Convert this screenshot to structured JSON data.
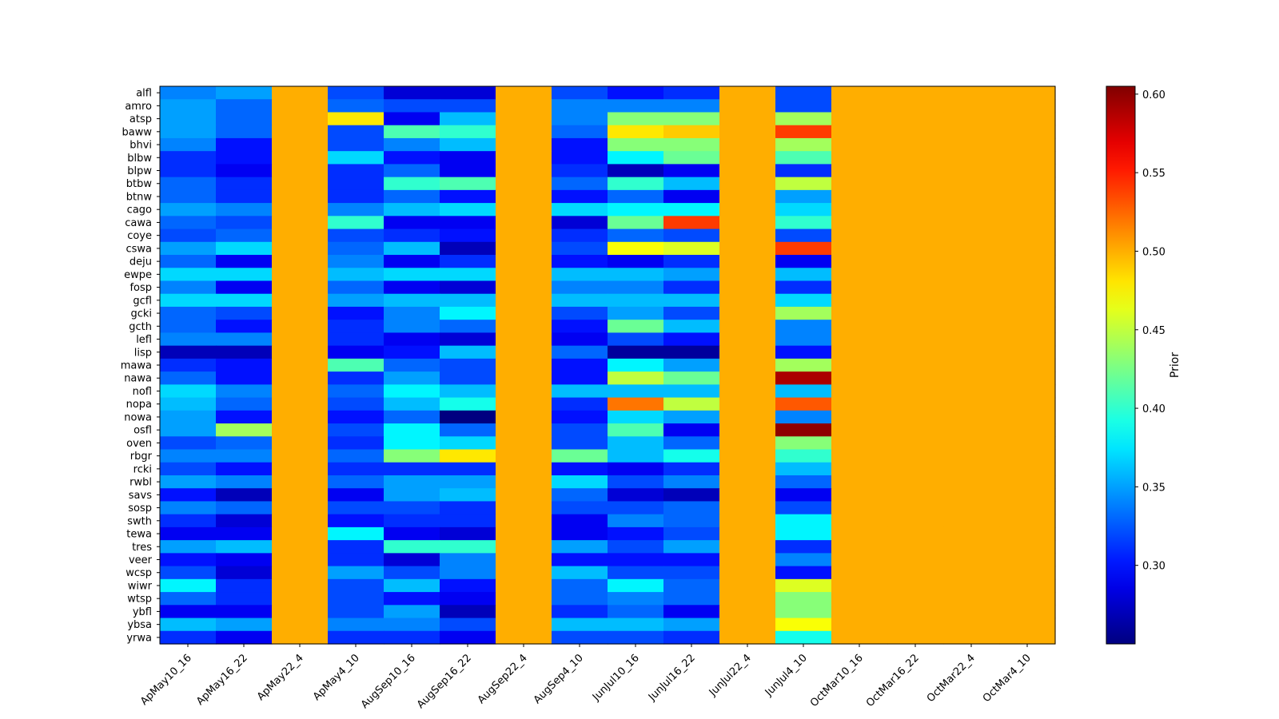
{
  "chart_data": {
    "type": "heatmap",
    "title": "",
    "xlabel": "",
    "ylabel": "",
    "x_categories": [
      "ApMay10_16",
      "ApMay16_22",
      "ApMay22_4",
      "ApMay4_10",
      "AugSep10_16",
      "AugSep16_22",
      "AugSep22_4",
      "AugSep4_10",
      "JunJul10_16",
      "JunJul16_22",
      "JunJul22_4",
      "JunJul4_10",
      "OctMar10_16",
      "OctMar16_22",
      "OctMar22_4",
      "OctMar4_10"
    ],
    "y_categories": [
      "alfl",
      "amro",
      "atsp",
      "baww",
      "bhvi",
      "blbw",
      "blpw",
      "btbw",
      "btnw",
      "cago",
      "cawa",
      "coye",
      "cswa",
      "deju",
      "ewpe",
      "fosp",
      "gcfl",
      "gcki",
      "gcth",
      "lefl",
      "lisp",
      "mawa",
      "nawa",
      "nofl",
      "nopa",
      "nowa",
      "osfl",
      "oven",
      "rbgr",
      "rcki",
      "rwbl",
      "savs",
      "sosp",
      "swth",
      "tewa",
      "tres",
      "veer",
      "wcsp",
      "wiwr",
      "wtsp",
      "ybfl",
      "ybsa",
      "yrwa"
    ],
    "values": [
      [
        0.34,
        0.35,
        0.5,
        0.32,
        0.28,
        0.28,
        0.5,
        0.32,
        0.3,
        0.31,
        0.5,
        0.32,
        0.5,
        0.5,
        0.5,
        0.5
      ],
      [
        0.35,
        0.33,
        0.5,
        0.33,
        0.32,
        0.32,
        0.5,
        0.34,
        0.34,
        0.34,
        0.5,
        0.32,
        0.5,
        0.5,
        0.5,
        0.5
      ],
      [
        0.35,
        0.33,
        0.5,
        0.48,
        0.29,
        0.36,
        0.5,
        0.34,
        0.43,
        0.43,
        0.5,
        0.44,
        0.5,
        0.5,
        0.5,
        0.5
      ],
      [
        0.35,
        0.33,
        0.5,
        0.32,
        0.41,
        0.4,
        0.5,
        0.33,
        0.48,
        0.49,
        0.5,
        0.54,
        0.5,
        0.5,
        0.5,
        0.5
      ],
      [
        0.34,
        0.3,
        0.5,
        0.32,
        0.34,
        0.36,
        0.5,
        0.3,
        0.43,
        0.43,
        0.5,
        0.44,
        0.5,
        0.5,
        0.5,
        0.5
      ],
      [
        0.31,
        0.3,
        0.5,
        0.37,
        0.3,
        0.29,
        0.5,
        0.3,
        0.38,
        0.42,
        0.5,
        0.41,
        0.5,
        0.5,
        0.5,
        0.5
      ],
      [
        0.31,
        0.29,
        0.5,
        0.31,
        0.33,
        0.29,
        0.5,
        0.31,
        0.27,
        0.29,
        0.5,
        0.31,
        0.5,
        0.5,
        0.5,
        0.5
      ],
      [
        0.33,
        0.31,
        0.5,
        0.31,
        0.4,
        0.41,
        0.5,
        0.33,
        0.4,
        0.36,
        0.5,
        0.45,
        0.5,
        0.5,
        0.5,
        0.5
      ],
      [
        0.33,
        0.31,
        0.5,
        0.31,
        0.33,
        0.3,
        0.5,
        0.3,
        0.33,
        0.29,
        0.5,
        0.35,
        0.5,
        0.5,
        0.5,
        0.5
      ],
      [
        0.35,
        0.34,
        0.5,
        0.34,
        0.36,
        0.37,
        0.5,
        0.37,
        0.38,
        0.38,
        0.5,
        0.37,
        0.5,
        0.5,
        0.5,
        0.5
      ],
      [
        0.33,
        0.32,
        0.5,
        0.4,
        0.29,
        0.29,
        0.5,
        0.28,
        0.42,
        0.54,
        0.5,
        0.4,
        0.5,
        0.5,
        0.5,
        0.5
      ],
      [
        0.32,
        0.33,
        0.5,
        0.32,
        0.31,
        0.3,
        0.5,
        0.31,
        0.33,
        0.32,
        0.5,
        0.32,
        0.5,
        0.5,
        0.5,
        0.5
      ],
      [
        0.35,
        0.37,
        0.5,
        0.33,
        0.36,
        0.27,
        0.5,
        0.32,
        0.47,
        0.46,
        0.5,
        0.54,
        0.5,
        0.5,
        0.5,
        0.5
      ],
      [
        0.33,
        0.29,
        0.5,
        0.34,
        0.29,
        0.31,
        0.5,
        0.3,
        0.29,
        0.31,
        0.5,
        0.29,
        0.5,
        0.5,
        0.5,
        0.5
      ],
      [
        0.37,
        0.37,
        0.5,
        0.36,
        0.37,
        0.37,
        0.5,
        0.36,
        0.36,
        0.35,
        0.5,
        0.36,
        0.5,
        0.5,
        0.5,
        0.5
      ],
      [
        0.34,
        0.29,
        0.5,
        0.33,
        0.29,
        0.28,
        0.5,
        0.34,
        0.34,
        0.31,
        0.5,
        0.31,
        0.5,
        0.5,
        0.5,
        0.5
      ],
      [
        0.37,
        0.37,
        0.5,
        0.35,
        0.36,
        0.36,
        0.5,
        0.36,
        0.36,
        0.36,
        0.5,
        0.37,
        0.5,
        0.5,
        0.5,
        0.5
      ],
      [
        0.33,
        0.32,
        0.5,
        0.3,
        0.34,
        0.38,
        0.5,
        0.32,
        0.35,
        0.32,
        0.5,
        0.44,
        0.5,
        0.5,
        0.5,
        0.5
      ],
      [
        0.33,
        0.3,
        0.5,
        0.31,
        0.34,
        0.33,
        0.5,
        0.3,
        0.42,
        0.36,
        0.5,
        0.34,
        0.5,
        0.5,
        0.5,
        0.5
      ],
      [
        0.34,
        0.34,
        0.5,
        0.31,
        0.29,
        0.28,
        0.5,
        0.29,
        0.32,
        0.3,
        0.5,
        0.34,
        0.5,
        0.5,
        0.5,
        0.5
      ],
      [
        0.27,
        0.27,
        0.5,
        0.29,
        0.3,
        0.36,
        0.5,
        0.33,
        0.26,
        0.26,
        0.5,
        0.3,
        0.5,
        0.5,
        0.5,
        0.5
      ],
      [
        0.31,
        0.3,
        0.5,
        0.41,
        0.33,
        0.32,
        0.5,
        0.3,
        0.38,
        0.35,
        0.5,
        0.44,
        0.5,
        0.5,
        0.5,
        0.5
      ],
      [
        0.33,
        0.3,
        0.5,
        0.31,
        0.35,
        0.32,
        0.5,
        0.3,
        0.45,
        0.42,
        0.5,
        0.59,
        0.5,
        0.5,
        0.5,
        0.5
      ],
      [
        0.37,
        0.34,
        0.5,
        0.33,
        0.38,
        0.36,
        0.5,
        0.36,
        0.36,
        0.36,
        0.5,
        0.36,
        0.5,
        0.5,
        0.5,
        0.5
      ],
      [
        0.36,
        0.33,
        0.5,
        0.32,
        0.36,
        0.39,
        0.5,
        0.31,
        0.52,
        0.45,
        0.5,
        0.53,
        0.5,
        0.5,
        0.5,
        0.5
      ],
      [
        0.35,
        0.3,
        0.5,
        0.3,
        0.33,
        0.25,
        0.5,
        0.3,
        0.37,
        0.35,
        0.5,
        0.34,
        0.5,
        0.5,
        0.5,
        0.5
      ],
      [
        0.35,
        0.44,
        0.5,
        0.32,
        0.38,
        0.33,
        0.5,
        0.32,
        0.41,
        0.29,
        0.5,
        0.6,
        0.5,
        0.5,
        0.5,
        0.5
      ],
      [
        0.32,
        0.33,
        0.5,
        0.31,
        0.38,
        0.37,
        0.5,
        0.32,
        0.36,
        0.33,
        0.5,
        0.43,
        0.5,
        0.5,
        0.5,
        0.5
      ],
      [
        0.34,
        0.34,
        0.5,
        0.33,
        0.43,
        0.48,
        0.5,
        0.42,
        0.36,
        0.39,
        0.5,
        0.4,
        0.5,
        0.5,
        0.5,
        0.5
      ],
      [
        0.32,
        0.3,
        0.5,
        0.31,
        0.31,
        0.31,
        0.5,
        0.3,
        0.29,
        0.31,
        0.5,
        0.36,
        0.5,
        0.5,
        0.5,
        0.5
      ],
      [
        0.35,
        0.34,
        0.5,
        0.33,
        0.35,
        0.35,
        0.5,
        0.37,
        0.32,
        0.34,
        0.5,
        0.33,
        0.5,
        0.5,
        0.5,
        0.5
      ],
      [
        0.3,
        0.27,
        0.5,
        0.29,
        0.35,
        0.36,
        0.5,
        0.33,
        0.28,
        0.27,
        0.5,
        0.29,
        0.5,
        0.5,
        0.5,
        0.5
      ],
      [
        0.34,
        0.33,
        0.5,
        0.32,
        0.32,
        0.31,
        0.5,
        0.32,
        0.32,
        0.33,
        0.5,
        0.32,
        0.5,
        0.5,
        0.5,
        0.5
      ],
      [
        0.31,
        0.28,
        0.5,
        0.3,
        0.31,
        0.31,
        0.5,
        0.29,
        0.34,
        0.33,
        0.5,
        0.38,
        0.5,
        0.5,
        0.5,
        0.5
      ],
      [
        0.29,
        0.29,
        0.5,
        0.38,
        0.29,
        0.28,
        0.5,
        0.29,
        0.3,
        0.32,
        0.5,
        0.38,
        0.5,
        0.5,
        0.5,
        0.5
      ],
      [
        0.35,
        0.36,
        0.5,
        0.31,
        0.4,
        0.4,
        0.5,
        0.35,
        0.32,
        0.35,
        0.5,
        0.31,
        0.5,
        0.5,
        0.5,
        0.5
      ],
      [
        0.3,
        0.29,
        0.5,
        0.31,
        0.28,
        0.34,
        0.5,
        0.3,
        0.3,
        0.3,
        0.5,
        0.34,
        0.5,
        0.5,
        0.5,
        0.5
      ],
      [
        0.32,
        0.28,
        0.5,
        0.35,
        0.32,
        0.34,
        0.5,
        0.36,
        0.32,
        0.32,
        0.5,
        0.3,
        0.5,
        0.5,
        0.5,
        0.5
      ],
      [
        0.38,
        0.31,
        0.5,
        0.32,
        0.36,
        0.3,
        0.5,
        0.33,
        0.38,
        0.33,
        0.5,
        0.46,
        0.5,
        0.5,
        0.5,
        0.5
      ],
      [
        0.33,
        0.31,
        0.5,
        0.32,
        0.3,
        0.29,
        0.5,
        0.33,
        0.34,
        0.33,
        0.5,
        0.43,
        0.5,
        0.5,
        0.5,
        0.5
      ],
      [
        0.29,
        0.29,
        0.5,
        0.32,
        0.35,
        0.27,
        0.5,
        0.31,
        0.33,
        0.29,
        0.5,
        0.43,
        0.5,
        0.5,
        0.5,
        0.5
      ],
      [
        0.36,
        0.35,
        0.5,
        0.34,
        0.34,
        0.32,
        0.5,
        0.36,
        0.36,
        0.35,
        0.5,
        0.47,
        0.5,
        0.5,
        0.5,
        0.5
      ],
      [
        0.31,
        0.29,
        0.5,
        0.31,
        0.31,
        0.29,
        0.5,
        0.32,
        0.32,
        0.31,
        0.5,
        0.39,
        0.5,
        0.5,
        0.5,
        0.5
      ]
    ],
    "colormap": "jet",
    "colorbar": {
      "label": "Prior",
      "vmin": 0.25,
      "vmax": 0.605,
      "ticks": [
        0.3,
        0.35,
        0.4,
        0.45,
        0.5,
        0.55,
        0.6
      ],
      "tick_labels": [
        "0.30",
        "0.35",
        "0.40",
        "0.45",
        "0.50",
        "0.55",
        "0.60"
      ]
    },
    "grid": false,
    "x_tick_rotation": "45"
  }
}
